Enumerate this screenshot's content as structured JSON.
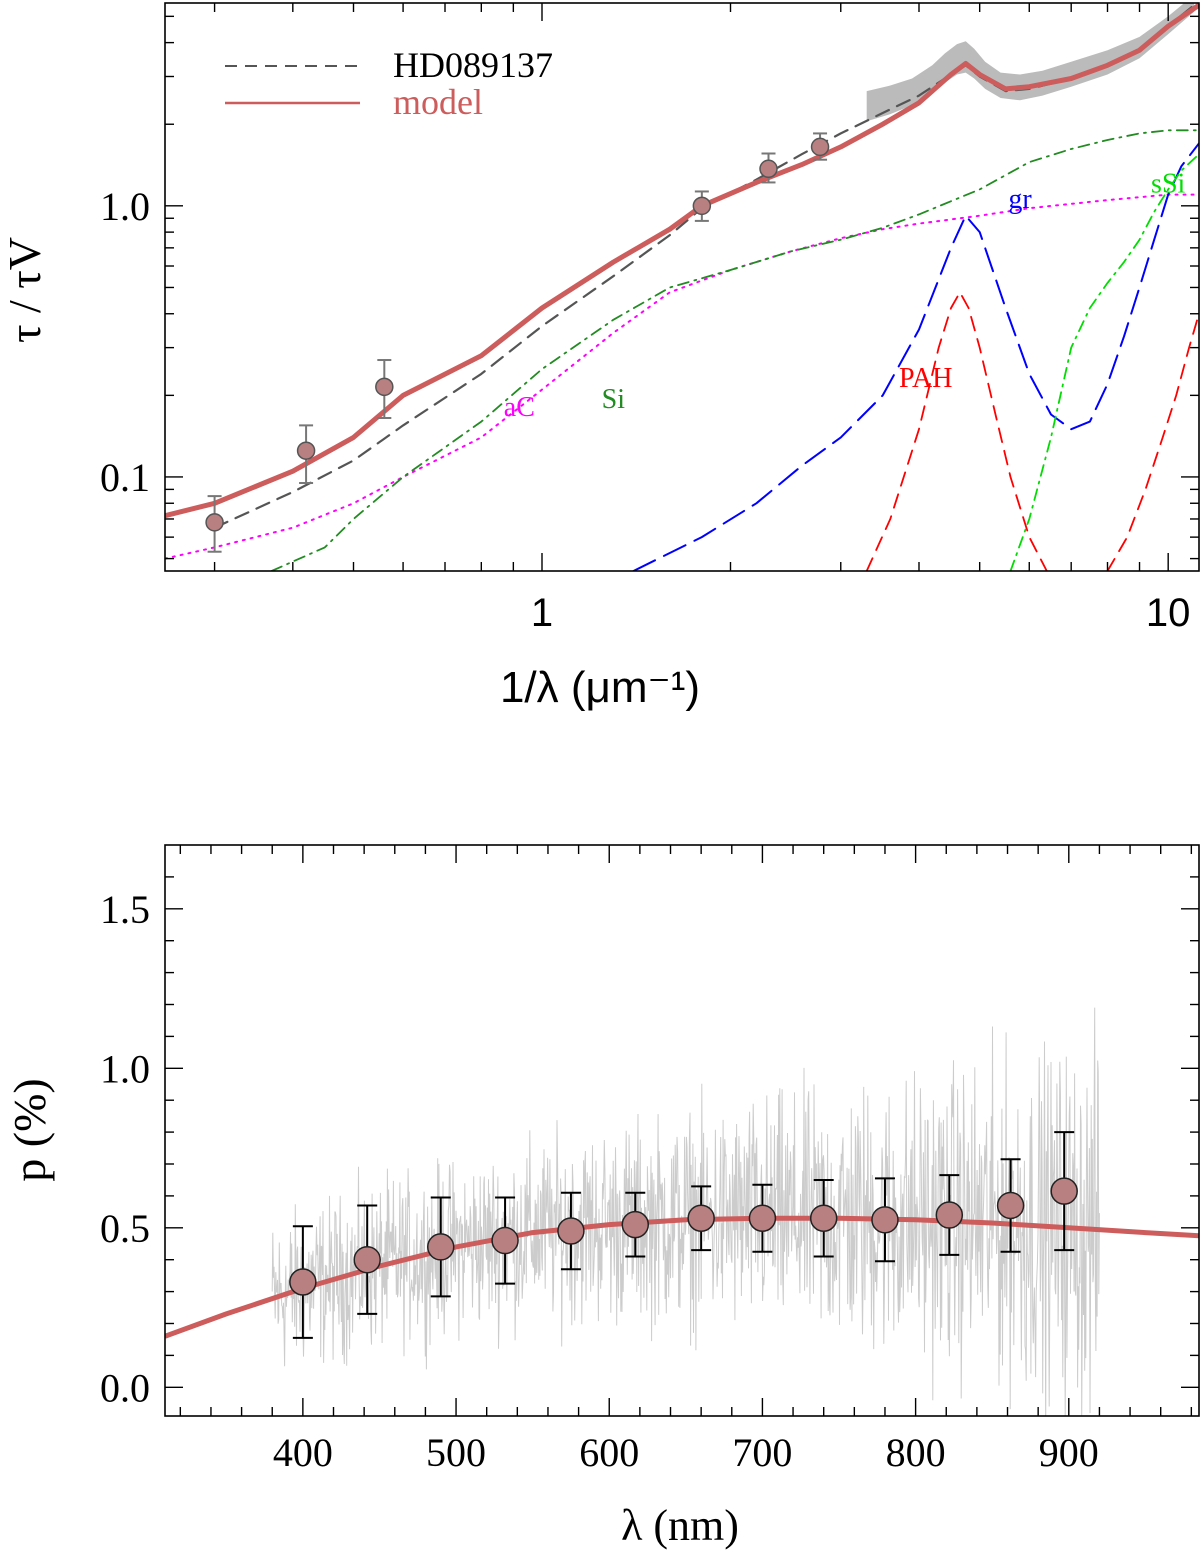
{
  "chart_data": [
    {
      "type": "line",
      "xlabel": "1/λ (μm⁻¹)",
      "ylabel": "τ / τV",
      "xscale": "log",
      "yscale": "log",
      "xlim": [
        0.25,
        11.2
      ],
      "ylim": [
        0.045,
        5.6
      ],
      "xticks": [
        {
          "v": 1,
          "label": "1"
        },
        {
          "v": 10,
          "label": "10"
        }
      ],
      "yticks": [
        {
          "v": 0.1,
          "label": "0.1"
        },
        {
          "v": 1.0,
          "label": "1.0"
        }
      ],
      "legend_position": "top-left",
      "legend": [
        {
          "label": "HD089137",
          "color": "#555555",
          "style": "dashed"
        },
        {
          "label": "model",
          "color": "#cd5c5c",
          "style": "solid"
        }
      ],
      "component_labels": [
        {
          "text": "aC",
          "color": "#ff00ff",
          "x": 0.92,
          "y": 0.168
        },
        {
          "text": "Si",
          "color": "#228b22",
          "x": 1.3,
          "y": 0.18
        },
        {
          "text": "PAH",
          "color": "#ff0000",
          "x": 4.1,
          "y": 0.215
        },
        {
          "text": "gr",
          "color": "#0000ff",
          "x": 5.8,
          "y": 0.98
        },
        {
          "text": "sSi",
          "color": "#00dd00",
          "x": 10.0,
          "y": 1.12
        }
      ],
      "observed_band": {
        "color": "#bbbbbb",
        "x": [
          3.3,
          3.6,
          3.9,
          4.2,
          4.4,
          4.6,
          4.75,
          4.9,
          5.1,
          5.4,
          5.8,
          6.3,
          7.0,
          8.0,
          9.0,
          10.0,
          11.0
        ],
        "low": [
          2.05,
          2.18,
          2.35,
          2.6,
          2.85,
          3.05,
          3.1,
          2.95,
          2.7,
          2.5,
          2.45,
          2.55,
          2.75,
          3.05,
          3.5,
          4.3,
          5.2
        ],
        "high": [
          2.65,
          2.78,
          2.95,
          3.3,
          3.65,
          3.95,
          4.05,
          3.8,
          3.4,
          3.1,
          3.05,
          3.15,
          3.4,
          3.75,
          4.2,
          5.0,
          6.0
        ]
      },
      "series": [
        {
          "name": "HD089137",
          "color": "#555555",
          "style": "dashed",
          "x": [
            0.3,
            0.4,
            0.5,
            0.6,
            0.8,
            1.0,
            1.3,
            1.6,
            1.8,
            2.2,
            2.6,
            3.0,
            3.5,
            4.0,
            4.5,
            4.75,
            5.0,
            5.5,
            6.0,
            7.0,
            8.0,
            9.0,
            10.0,
            11.0
          ],
          "y": [
            0.065,
            0.088,
            0.115,
            0.155,
            0.24,
            0.36,
            0.55,
            0.78,
            0.98,
            1.25,
            1.55,
            1.85,
            2.2,
            2.55,
            3.05,
            3.3,
            3.0,
            2.65,
            2.7,
            2.95,
            3.3,
            3.8,
            4.6,
            5.5
          ]
        },
        {
          "name": "model",
          "color": "#cd5c5c",
          "style": "solid",
          "x": [
            0.25,
            0.3,
            0.4,
            0.5,
            0.6,
            0.8,
            1.0,
            1.3,
            1.6,
            1.8,
            2.2,
            2.6,
            3.0,
            3.5,
            4.0,
            4.5,
            4.75,
            5.0,
            5.5,
            6.0,
            7.0,
            8.0,
            9.0,
            10.0,
            11.2
          ],
          "y": [
            0.072,
            0.08,
            0.105,
            0.14,
            0.2,
            0.28,
            0.42,
            0.62,
            0.82,
            1.0,
            1.22,
            1.42,
            1.65,
            2.0,
            2.4,
            3.05,
            3.35,
            3.05,
            2.7,
            2.75,
            2.95,
            3.3,
            3.75,
            4.6,
            5.5
          ]
        },
        {
          "name": "aC",
          "color": "#ff00ff",
          "style": "dotted",
          "x": [
            0.25,
            0.3,
            0.4,
            0.5,
            0.6,
            0.8,
            1.0,
            1.3,
            1.6,
            2.0,
            2.5,
            3.0,
            3.5,
            4.0,
            5.0,
            6.0,
            8.0,
            10.0,
            11.2
          ],
          "y": [
            0.05,
            0.055,
            0.065,
            0.08,
            0.1,
            0.14,
            0.21,
            0.34,
            0.48,
            0.58,
            0.68,
            0.76,
            0.82,
            0.86,
            0.92,
            0.98,
            1.05,
            1.1,
            1.1
          ]
        },
        {
          "name": "Si",
          "color": "#228b22",
          "style": "dash-dot",
          "x": [
            0.37,
            0.45,
            0.5,
            0.6,
            0.8,
            1.0,
            1.3,
            1.6,
            2.0,
            2.5,
            3.0,
            3.5,
            4.0,
            5.0,
            6.0,
            7.0,
            8.0,
            9.0,
            10.0,
            11.2
          ],
          "y": [
            0.045,
            0.055,
            0.07,
            0.1,
            0.16,
            0.25,
            0.38,
            0.5,
            0.58,
            0.68,
            0.75,
            0.83,
            0.93,
            1.15,
            1.45,
            1.62,
            1.75,
            1.85,
            1.9,
            1.9
          ]
        },
        {
          "name": "gr",
          "color": "#0000ff",
          "style": "long-dash",
          "x": [
            1.4,
            1.8,
            2.2,
            2.6,
            3.0,
            3.5,
            4.0,
            4.5,
            4.75,
            5.0,
            5.5,
            6.0,
            6.5,
            7.0,
            7.5,
            8.0,
            8.5,
            9.0,
            9.5,
            10.0,
            10.5,
            11.2
          ],
          "y": [
            0.045,
            0.06,
            0.08,
            0.11,
            0.14,
            0.2,
            0.35,
            0.7,
            0.92,
            0.8,
            0.42,
            0.24,
            0.17,
            0.15,
            0.16,
            0.22,
            0.33,
            0.5,
            0.75,
            1.1,
            1.4,
            1.7
          ]
        },
        {
          "name": "PAH",
          "color": "#ff0000",
          "style": "dashed",
          "x": [
            3.3,
            3.6,
            4.0,
            4.3,
            4.5,
            4.65,
            4.8,
            5.0,
            5.3,
            5.6,
            6.0,
            6.4
          ],
          "y": [
            0.045,
            0.07,
            0.15,
            0.3,
            0.42,
            0.48,
            0.42,
            0.3,
            0.17,
            0.1,
            0.06,
            0.045
          ],
          "x2": [
            8.0,
            8.6,
            9.2,
            9.8,
            10.3,
            10.8,
            11.2
          ],
          "y2": [
            0.045,
            0.06,
            0.09,
            0.14,
            0.2,
            0.3,
            0.4
          ]
        },
        {
          "name": "sSi",
          "color": "#00dd00",
          "style": "dash-dot",
          "x": [
            5.6,
            6.0,
            6.5,
            7.0,
            7.5,
            8.0,
            8.5,
            9.0,
            9.5,
            10.0,
            10.5,
            11.2
          ],
          "y": [
            0.045,
            0.07,
            0.14,
            0.3,
            0.42,
            0.52,
            0.62,
            0.75,
            0.95,
            1.15,
            1.35,
            1.55
          ]
        }
      ],
      "points": {
        "color": "#b88080",
        "x": [
          0.3,
          0.42,
          0.56,
          1.8,
          2.3,
          2.78
        ],
        "y": [
          0.068,
          0.125,
          0.215,
          1.0,
          1.37,
          1.65
        ],
        "low": [
          0.053,
          0.095,
          0.165,
          0.88,
          1.22,
          1.48
        ],
        "high": [
          0.085,
          0.155,
          0.27,
          1.13,
          1.56,
          1.85
        ]
      }
    },
    {
      "type": "scatter",
      "xlabel": "λ (nm)",
      "ylabel": "p (%)",
      "xlim": [
        310,
        985
      ],
      "ylim": [
        -0.09,
        1.7
      ],
      "xticks": [
        {
          "v": 400,
          "label": "400"
        },
        {
          "v": 500,
          "label": "500"
        },
        {
          "v": 600,
          "label": "600"
        },
        {
          "v": 700,
          "label": "700"
        },
        {
          "v": 800,
          "label": "800"
        },
        {
          "v": 900,
          "label": "900"
        }
      ],
      "yticks": [
        {
          "v": 0.0,
          "label": "0.0"
        },
        {
          "v": 0.5,
          "label": "0.5"
        },
        {
          "v": 1.0,
          "label": "1.0"
        },
        {
          "v": 1.5,
          "label": "1.5"
        }
      ],
      "noise_spectrum": {
        "color": "#cccccc",
        "x_range": [
          380,
          920
        ],
        "mean_curve": "model",
        "scatter_pct_start": 0.28,
        "scatter_pct_end": 0.65
      },
      "series": [
        {
          "name": "model",
          "color": "#cd5c5c",
          "style": "solid",
          "x": [
            310,
            350,
            400,
            450,
            500,
            550,
            600,
            650,
            700,
            750,
            800,
            850,
            900,
            950,
            985
          ],
          "y": [
            0.16,
            0.23,
            0.31,
            0.38,
            0.44,
            0.485,
            0.51,
            0.525,
            0.53,
            0.53,
            0.525,
            0.515,
            0.5,
            0.485,
            0.475
          ]
        }
      ],
      "points": {
        "color": "#b88080",
        "x": [
          400,
          442,
          490,
          532,
          575,
          617,
          660,
          700,
          740,
          780,
          822,
          862,
          897
        ],
        "y": [
          0.33,
          0.4,
          0.44,
          0.46,
          0.49,
          0.51,
          0.53,
          0.53,
          0.53,
          0.525,
          0.54,
          0.57,
          0.615
        ],
        "err": [
          0.175,
          0.17,
          0.155,
          0.135,
          0.12,
          0.1,
          0.1,
          0.105,
          0.12,
          0.13,
          0.125,
          0.145,
          0.185
        ]
      }
    }
  ]
}
